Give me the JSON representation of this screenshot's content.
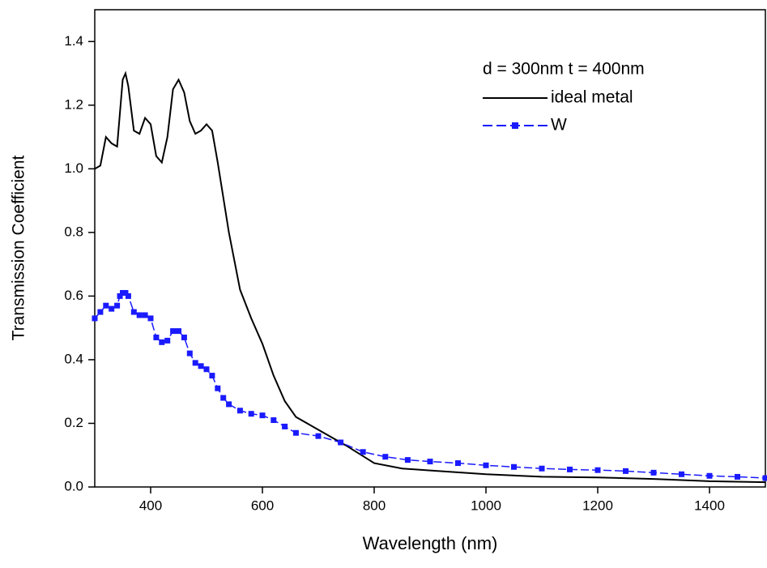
{
  "chart_data": {
    "type": "line",
    "xlabel": "Wavelength (nm)",
    "ylabel": "Transmission Coefficient",
    "annotation": "d = 300nm  t = 400nm",
    "xlim": [
      300,
      1500
    ],
    "xticks": [
      400,
      600,
      800,
      1000,
      1200,
      1400
    ],
    "ylim": [
      0,
      1.5
    ],
    "yticks": [
      {
        "value": 0,
        "label": "0.0"
      },
      {
        "value": 0.2,
        "label": "0.2"
      },
      {
        "value": 0.4,
        "label": "0.4"
      },
      {
        "value": 0.6,
        "label": "0.6"
      },
      {
        "value": 0.8,
        "label": "0.8"
      },
      {
        "value": 1.0,
        "label": "1.0"
      },
      {
        "value": 1.2,
        "label": "1.2"
      },
      {
        "value": 1.4,
        "label": "1.4"
      }
    ],
    "series": [
      {
        "name": "ideal metal",
        "color": "#000000",
        "marker": "none",
        "x": [
          300,
          310,
          320,
          330,
          340,
          350,
          355,
          360,
          370,
          380,
          390,
          400,
          410,
          420,
          430,
          440,
          450,
          460,
          470,
          480,
          490,
          500,
          510,
          520,
          540,
          560,
          580,
          600,
          620,
          640,
          660,
          700,
          750,
          800,
          850,
          900,
          1000,
          1100,
          1200,
          1300,
          1400,
          1500
        ],
        "values": [
          1.0,
          1.01,
          1.1,
          1.08,
          1.07,
          1.28,
          1.3,
          1.26,
          1.12,
          1.11,
          1.16,
          1.14,
          1.04,
          1.02,
          1.1,
          1.25,
          1.28,
          1.24,
          1.15,
          1.11,
          1.12,
          1.14,
          1.12,
          1.02,
          0.8,
          0.62,
          0.53,
          0.45,
          0.35,
          0.27,
          0.22,
          0.18,
          0.13,
          0.075,
          0.058,
          0.052,
          0.04,
          0.032,
          0.03,
          0.025,
          0.018,
          0.015
        ]
      },
      {
        "name": "W",
        "color": "#1a1aff",
        "marker": "square",
        "x": [
          300,
          310,
          320,
          330,
          340,
          345,
          350,
          355,
          360,
          370,
          380,
          390,
          400,
          410,
          420,
          430,
          440,
          450,
          460,
          470,
          480,
          490,
          500,
          510,
          520,
          530,
          540,
          560,
          580,
          600,
          620,
          640,
          660,
          700,
          740,
          780,
          820,
          860,
          900,
          950,
          1000,
          1050,
          1100,
          1150,
          1200,
          1250,
          1300,
          1350,
          1400,
          1450,
          1500
        ],
        "values": [
          0.53,
          0.55,
          0.57,
          0.56,
          0.57,
          0.6,
          0.61,
          0.61,
          0.6,
          0.55,
          0.54,
          0.54,
          0.53,
          0.47,
          0.455,
          0.46,
          0.49,
          0.49,
          0.47,
          0.42,
          0.39,
          0.38,
          0.37,
          0.35,
          0.31,
          0.28,
          0.26,
          0.24,
          0.23,
          0.225,
          0.21,
          0.19,
          0.17,
          0.16,
          0.14,
          0.11,
          0.095,
          0.085,
          0.08,
          0.075,
          0.068,
          0.063,
          0.058,
          0.055,
          0.053,
          0.05,
          0.045,
          0.04,
          0.035,
          0.032,
          0.028
        ]
      }
    ]
  }
}
